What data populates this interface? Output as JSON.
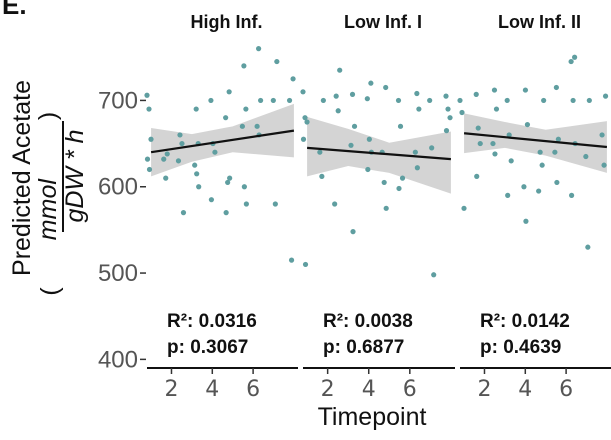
{
  "panel_letter": "E.",
  "chart_data": {
    "type": "scatter",
    "ylabel_top": "Predicted Acetate",
    "ylabel_unit_num": "mmol",
    "ylabel_unit_den": "gDW * h",
    "xlabel": "Timepoint",
    "ylim": [
      390,
      770
    ],
    "yticks": [
      400,
      500,
      600,
      700
    ],
    "xlim": [
      0.8,
      8.2
    ],
    "xticks": [
      2,
      4,
      6
    ],
    "point_color": "#5f9ea0",
    "band_color": "#d4d4d4",
    "line_color": "#111111",
    "facets": [
      {
        "title": "High Inf.",
        "fit": {
          "x0": 1,
          "y0": 640,
          "x1": 8,
          "y1": 665
        },
        "band": {
          "lower": [
            612,
            629,
            640,
            634
          ],
          "upper": [
            668,
            661,
            670,
            696
          ],
          "x": [
            1,
            3,
            5,
            8
          ]
        },
        "points": [
          {
            "x": 1,
            "y": 706
          },
          {
            "x": 1,
            "y": 690
          },
          {
            "x": 1,
            "y": 655
          },
          {
            "x": 1,
            "y": 632
          },
          {
            "x": 1,
            "y": 620
          },
          {
            "x": 2,
            "y": 638
          },
          {
            "x": 2,
            "y": 632
          },
          {
            "x": 2,
            "y": 610
          },
          {
            "x": 3,
            "y": 570
          },
          {
            "x": 3,
            "y": 660
          },
          {
            "x": 3,
            "y": 650
          },
          {
            "x": 3,
            "y": 630
          },
          {
            "x": 4,
            "y": 690
          },
          {
            "x": 4,
            "y": 650
          },
          {
            "x": 4,
            "y": 625
          },
          {
            "x": 4,
            "y": 615
          },
          {
            "x": 4,
            "y": 600
          },
          {
            "x": 5,
            "y": 700
          },
          {
            "x": 5,
            "y": 650
          },
          {
            "x": 5,
            "y": 640
          },
          {
            "x": 5,
            "y": 585
          },
          {
            "x": 6,
            "y": 710
          },
          {
            "x": 6,
            "y": 680
          },
          {
            "x": 6,
            "y": 605
          },
          {
            "x": 6,
            "y": 610
          },
          {
            "x": 6,
            "y": 570
          },
          {
            "x": 7,
            "y": 740
          },
          {
            "x": 7,
            "y": 690
          },
          {
            "x": 7,
            "y": 670
          },
          {
            "x": 7,
            "y": 600
          },
          {
            "x": 7,
            "y": 580
          },
          {
            "x": 8,
            "y": 760
          },
          {
            "x": 8,
            "y": 700
          },
          {
            "x": 8,
            "y": 670
          },
          {
            "x": 8,
            "y": 660
          },
          {
            "x": 9,
            "y": 745
          },
          {
            "x": 9,
            "y": 700
          },
          {
            "x": 9,
            "y": 580
          },
          {
            "x": 10,
            "y": 725
          },
          {
            "x": 10,
            "y": 700
          },
          {
            "x": 10,
            "y": 515
          }
        ]
      },
      {
        "title": "Low Inf. I",
        "fit": {
          "x0": 1,
          "y0": 645,
          "x1": 8,
          "y1": 632
        },
        "band": {
          "lower": [
            612,
            624,
            616,
            592
          ],
          "upper": [
            681,
            667,
            651,
            664
          ],
          "x": [
            1,
            3,
            5,
            8
          ]
        },
        "points": [
          {
            "x": 1,
            "y": 710
          },
          {
            "x": 1,
            "y": 680
          },
          {
            "x": 1,
            "y": 675
          },
          {
            "x": 1,
            "y": 655
          },
          {
            "x": 1,
            "y": 510
          },
          {
            "x": 2,
            "y": 700
          },
          {
            "x": 2,
            "y": 640
          },
          {
            "x": 2,
            "y": 612
          },
          {
            "x": 3,
            "y": 735
          },
          {
            "x": 3,
            "y": 705
          },
          {
            "x": 3,
            "y": 688
          },
          {
            "x": 3,
            "y": 580
          },
          {
            "x": 4,
            "y": 707
          },
          {
            "x": 4,
            "y": 670
          },
          {
            "x": 4,
            "y": 648
          },
          {
            "x": 4,
            "y": 548
          },
          {
            "x": 5,
            "y": 720
          },
          {
            "x": 5,
            "y": 702
          },
          {
            "x": 5,
            "y": 655
          },
          {
            "x": 5,
            "y": 640
          },
          {
            "x": 5,
            "y": 620
          },
          {
            "x": 6,
            "y": 715
          },
          {
            "x": 6,
            "y": 640
          },
          {
            "x": 6,
            "y": 605
          },
          {
            "x": 6,
            "y": 575
          },
          {
            "x": 7,
            "y": 700
          },
          {
            "x": 7,
            "y": 670
          },
          {
            "x": 7,
            "y": 610
          },
          {
            "x": 7,
            "y": 598
          },
          {
            "x": 8,
            "y": 708
          },
          {
            "x": 8,
            "y": 690
          },
          {
            "x": 8,
            "y": 640
          },
          {
            "x": 8,
            "y": 622
          },
          {
            "x": 9,
            "y": 700
          },
          {
            "x": 9,
            "y": 645
          },
          {
            "x": 9,
            "y": 498
          },
          {
            "x": 10,
            "y": 705
          },
          {
            "x": 10,
            "y": 690
          },
          {
            "x": 10,
            "y": 680
          },
          {
            "x": 10,
            "y": 665
          }
        ]
      },
      {
        "title": "Low Inf. II",
        "fit": {
          "x0": 1,
          "y0": 662,
          "x1": 8,
          "y1": 646
        },
        "band": {
          "lower": [
            639,
            645,
            636,
            616
          ],
          "upper": [
            685,
            675,
            666,
            676
          ],
          "x": [
            1,
            3,
            5,
            8
          ]
        },
        "points": [
          {
            "x": 1,
            "y": 700
          },
          {
            "x": 1,
            "y": 686
          },
          {
            "x": 1,
            "y": 575
          },
          {
            "x": 2,
            "y": 707
          },
          {
            "x": 2,
            "y": 668
          },
          {
            "x": 2,
            "y": 650
          },
          {
            "x": 2,
            "y": 612
          },
          {
            "x": 3,
            "y": 712
          },
          {
            "x": 3,
            "y": 690
          },
          {
            "x": 3,
            "y": 650
          },
          {
            "x": 3,
            "y": 638
          },
          {
            "x": 4,
            "y": 700
          },
          {
            "x": 4,
            "y": 660
          },
          {
            "x": 4,
            "y": 630
          },
          {
            "x": 4,
            "y": 590
          },
          {
            "x": 5,
            "y": 712
          },
          {
            "x": 5,
            "y": 672
          },
          {
            "x": 5,
            "y": 600
          },
          {
            "x": 5,
            "y": 560
          },
          {
            "x": 6,
            "y": 700
          },
          {
            "x": 6,
            "y": 640
          },
          {
            "x": 6,
            "y": 625
          },
          {
            "x": 6,
            "y": 595
          },
          {
            "x": 7,
            "y": 715
          },
          {
            "x": 7,
            "y": 655
          },
          {
            "x": 7,
            "y": 640
          },
          {
            "x": 7,
            "y": 605
          },
          {
            "x": 8,
            "y": 750
          },
          {
            "x": 8,
            "y": 745
          },
          {
            "x": 8,
            "y": 700
          },
          {
            "x": 8,
            "y": 650
          },
          {
            "x": 8,
            "y": 590
          },
          {
            "x": 9,
            "y": 700
          },
          {
            "x": 9,
            "y": 635
          },
          {
            "x": 9,
            "y": 530
          },
          {
            "x": 10,
            "y": 705
          },
          {
            "x": 10,
            "y": 660
          },
          {
            "x": 10,
            "y": 625
          }
        ]
      }
    ],
    "stats": [
      {
        "r2_label": "R²: 0.0316",
        "p_label": "p: 0.3067"
      },
      {
        "r2_label": "R²: 0.0038",
        "p_label": "p: 0.6877"
      },
      {
        "r2_label": "R²: 0.0142",
        "p_label": "p: 0.4639"
      }
    ]
  }
}
